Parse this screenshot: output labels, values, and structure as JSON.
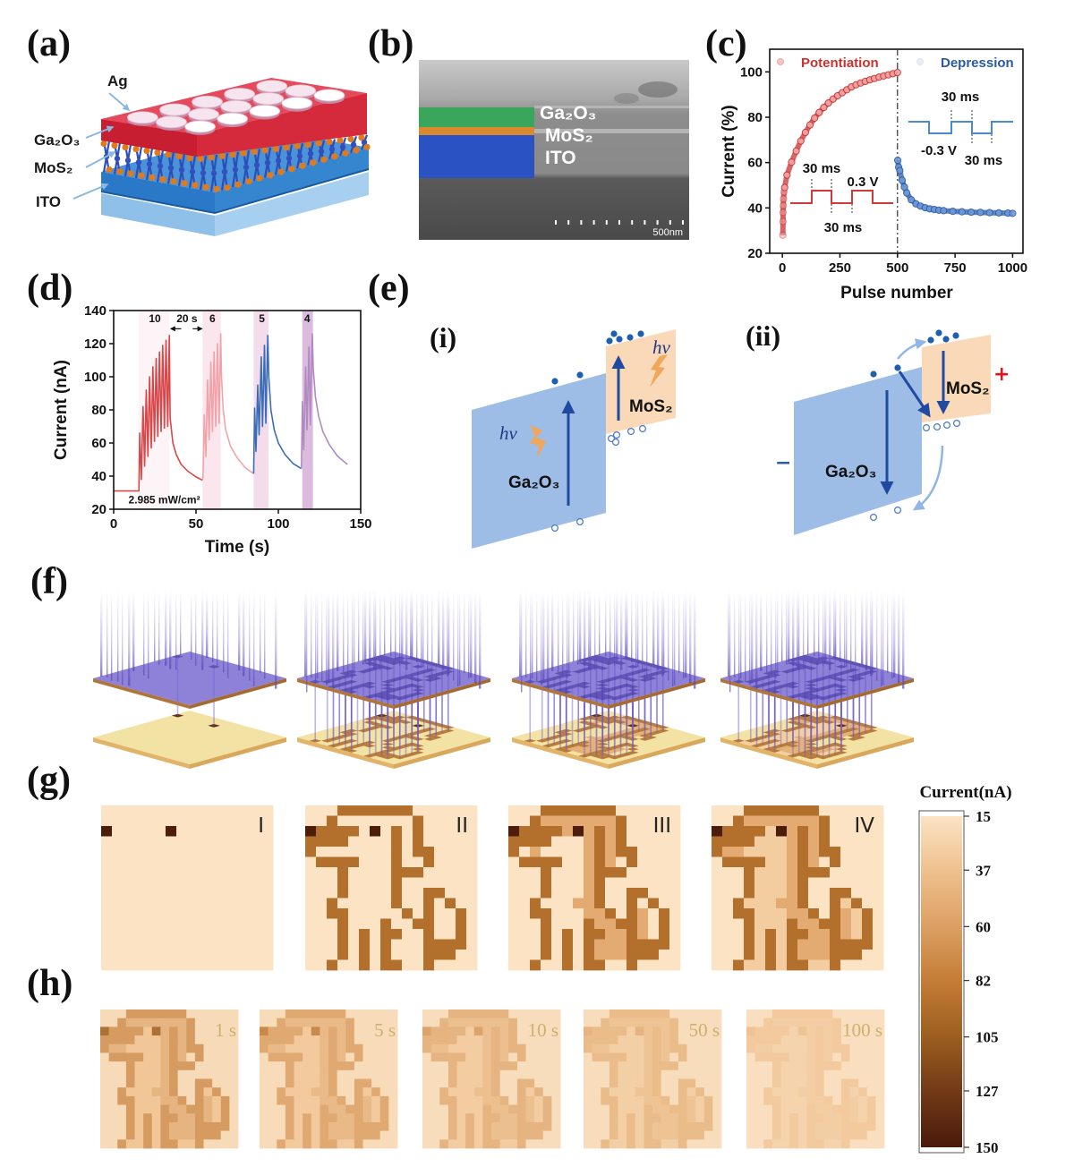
{
  "panel_labels": {
    "a": "(a)",
    "b": "(b)",
    "c": "(c)",
    "d": "(d)",
    "e": "(e)",
    "e_i": "(i)",
    "e_ii": "(ii)",
    "f": "(f)",
    "g": "(g)",
    "h": "(h)"
  },
  "device_schematic": {
    "ag": "Ag",
    "ga2o3": "Ga₂O₃",
    "mos2": "MoS₂",
    "ito": "ITO",
    "colors": {
      "ga2o3": "#d62b3c",
      "ito": "#3486d0",
      "substrate": "#9ac6ec",
      "mos2_atoms": "#e07a1a",
      "mos2_bonds": "#2a4fb8",
      "ag": "#f6e4ee"
    }
  },
  "sem_image": {
    "ga2o3": "Ga₂O₃",
    "mos2": "MoS₂",
    "ito": "ITO",
    "scale_bar": "500nm",
    "colors": {
      "ga2o3": "#3aa65c",
      "mos2": "#d98a2e",
      "ito": "#2a52c2"
    }
  },
  "band_diagram": {
    "i": {
      "photon_1": "hν",
      "photon_2": "hν",
      "ga2o3": "Ga₂O₃",
      "mos2": "MoS₂"
    },
    "ii": {
      "ga2o3": "Ga₂O₃",
      "mos2": "MoS₂",
      "plus": "+",
      "minus": "−"
    },
    "colors": {
      "ga2o3": "#9dbde6",
      "mos2": "#f9d9b8",
      "arrow": "#1f4aa0",
      "photon": "#f2a65a"
    }
  },
  "chart_data": [
    {
      "panel": "c",
      "type": "scatter",
      "title": "",
      "xlabel": "Pulse number",
      "ylabel": "Current (%)",
      "xlim": [
        -55,
        1045
      ],
      "ylim": [
        20,
        110
      ],
      "xticks": [
        0,
        250,
        500,
        750,
        1000
      ],
      "yticks": [
        20,
        40,
        60,
        80,
        100
      ],
      "divider_x": 500,
      "grid": false,
      "legend": {
        "position": "top",
        "entries": [
          "Potentiation",
          "Depression"
        ]
      },
      "series": [
        {
          "name": "Potentiation",
          "color": "#c83232",
          "marker_color": "#f2a6a6",
          "points": [
            [
              2,
              28
            ],
            [
              3,
              34
            ],
            [
              3,
              38
            ],
            [
              4,
              41
            ],
            [
              5,
              44
            ],
            [
              7,
              47
            ],
            [
              10,
              49
            ],
            [
              20,
              54.5
            ],
            [
              40,
              60.2
            ],
            [
              60,
              65.1
            ],
            [
              80,
              69.5
            ],
            [
              100,
              73.3
            ],
            [
              120,
              76.6
            ],
            [
              140,
              79.6
            ],
            [
              160,
              82.1
            ],
            [
              180,
              84.3
            ],
            [
              200,
              86.3
            ],
            [
              220,
              88.0
            ],
            [
              240,
              89.5
            ],
            [
              260,
              90.8
            ],
            [
              280,
              92.1
            ],
            [
              300,
              93.4
            ],
            [
              320,
              94.3
            ],
            [
              340,
              95.1
            ],
            [
              360,
              95.8
            ],
            [
              380,
              96.5
            ],
            [
              400,
              97.1
            ],
            [
              420,
              97.7
            ],
            [
              440,
              98.2
            ],
            [
              460,
              98.7
            ],
            [
              480,
              99.2
            ],
            [
              500,
              99.7
            ]
          ]
        },
        {
          "name": "Depression",
          "color": "#2a5aa8",
          "marker_color": "#6f9ad6",
          "points": [
            [
              501,
              61
            ],
            [
              505,
              58
            ],
            [
              510,
              56.5
            ],
            [
              520,
              52.2
            ],
            [
              530,
              49.2
            ],
            [
              540,
              46.6
            ],
            [
              560,
              43.6
            ],
            [
              580,
              41.8
            ],
            [
              600,
              40.8
            ],
            [
              620,
              40.1
            ],
            [
              640,
              39.6
            ],
            [
              660,
              39.3
            ],
            [
              680,
              39.0
            ],
            [
              700,
              38.8
            ],
            [
              740,
              38.5
            ],
            [
              780,
              38.3
            ],
            [
              820,
              38.1
            ],
            [
              860,
              38.0
            ],
            [
              900,
              37.9
            ],
            [
              940,
              37.8
            ],
            [
              980,
              37.7
            ],
            [
              1000,
              37.6
            ]
          ]
        }
      ],
      "insets": [
        {
          "name": "potentiation pulse",
          "width_label": "30 ms",
          "amplitude_label": "0.3 V",
          "interval_label": "30 ms",
          "color": "#d03a3a"
        },
        {
          "name": "depression pulse",
          "width_label": "30 ms",
          "amplitude_label": "-0.3 V",
          "interval_label": "30 ms",
          "color": "#4a8ad0"
        }
      ]
    },
    {
      "panel": "d",
      "type": "line",
      "title": "",
      "xlabel": "Time (s)",
      "ylabel": "Current (nA)",
      "xlim": [
        0,
        150
      ],
      "ylim": [
        20,
        140
      ],
      "xticks": [
        0,
        50,
        100,
        150
      ],
      "yticks": [
        20,
        40,
        60,
        80,
        100,
        120,
        140
      ],
      "grid": false,
      "series": [
        {
          "name": "10 pulses",
          "color": "#d8474a",
          "points": [
            [
              0,
              31
            ],
            [
              15,
              31
            ],
            [
              15.3,
              31
            ],
            [
              15.8,
              66
            ],
            [
              16.8,
              38
            ],
            [
              17.8,
              82
            ],
            [
              18.8,
              46
            ],
            [
              19.8,
              92
            ],
            [
              20.8,
              52
            ],
            [
              21.8,
              100
            ],
            [
              22.8,
              57
            ],
            [
              23.8,
              106
            ],
            [
              24.8,
              61
            ],
            [
              25.8,
              111
            ],
            [
              26.8,
              64
            ],
            [
              27.8,
              115
            ],
            [
              28.8,
              67
            ],
            [
              29.8,
              119
            ],
            [
              30.8,
              69
            ],
            [
              31.8,
              122
            ],
            [
              32.8,
              70
            ],
            [
              33.8,
              125
            ],
            [
              34.3,
              75
            ],
            [
              36,
              60
            ],
            [
              38,
              53
            ],
            [
              41,
              47
            ],
            [
              45,
              43
            ],
            [
              50,
              39.5
            ],
            [
              54,
              37.5
            ]
          ]
        },
        {
          "name": "6 pulses",
          "color": "#f0a4aa",
          "points": [
            [
              54,
              37.5
            ],
            [
              54.3,
              40
            ],
            [
              55,
              77
            ],
            [
              56,
              52
            ],
            [
              57,
              98
            ],
            [
              58,
              62
            ],
            [
              59,
              109
            ],
            [
              60,
              67
            ],
            [
              61,
              115
            ],
            [
              62,
              70
            ],
            [
              63,
              120
            ],
            [
              64,
              72
            ],
            [
              65,
              126
            ],
            [
              65.5,
              100
            ],
            [
              66.5,
              80
            ],
            [
              68,
              68
            ],
            [
              71,
              58
            ],
            [
              75,
              51
            ],
            [
              80,
              45
            ],
            [
              85,
              41.5
            ]
          ]
        },
        {
          "name": "5 pulses",
          "color": "#3a6db8",
          "points": [
            [
              85,
              41.5
            ],
            [
              85.6,
              81
            ],
            [
              86.4,
              55
            ],
            [
              87.5,
              95
            ],
            [
              88.3,
              65
            ],
            [
              89.6,
              112
            ],
            [
              90.4,
              70
            ],
            [
              91.6,
              119
            ],
            [
              92.4,
              72
            ],
            [
              93.6,
              125
            ],
            [
              94.2,
              100
            ],
            [
              95.5,
              80
            ],
            [
              97.5,
              68
            ],
            [
              100,
              60
            ],
            [
              104,
              53
            ],
            [
              109,
              47.5
            ],
            [
              114,
              44.5
            ]
          ]
        },
        {
          "name": "4 pulses",
          "color": "#b08ac0",
          "points": [
            [
              114,
              44.5
            ],
            [
              114.6,
              85
            ],
            [
              115.4,
              56
            ],
            [
              116.6,
              106
            ],
            [
              117.4,
              68
            ],
            [
              118.6,
              118
            ],
            [
              119.4,
              71
            ],
            [
              120.6,
              126
            ],
            [
              121.2,
              105
            ],
            [
              122.5,
              88
            ],
            [
              124.5,
              76
            ],
            [
              127,
              67
            ],
            [
              131,
              59
            ],
            [
              136,
              52
            ],
            [
              142,
              47
            ]
          ]
        }
      ],
      "shaded_regions": [
        {
          "x": [
            15,
            34
          ],
          "color": "#fcf4f6"
        },
        {
          "x": [
            54,
            65
          ],
          "color": "#fbe6ed"
        },
        {
          "x": [
            85,
            94
          ],
          "color": "#f5dcea"
        },
        {
          "x": [
            114.5,
            121
          ],
          "color": "#dbbcdf"
        }
      ],
      "annotations": [
        {
          "text": "10",
          "x": 25,
          "y": 133
        },
        {
          "text": "20 s",
          "x": 44.5,
          "y": 133
        },
        {
          "text": "6",
          "x": 60,
          "y": 133
        },
        {
          "text": "5",
          "x": 90,
          "y": 133
        },
        {
          "text": "4",
          "x": 117.5,
          "y": 133
        },
        {
          "text": "2.985 mW/cm²",
          "x": 9,
          "y": 23.5
        }
      ],
      "interval_arrows": {
        "from": 34,
        "to": 54,
        "y": 129
      }
    },
    {
      "panel": "g",
      "type": "heatmap",
      "grid": [
        16,
        16
      ],
      "colorbar": {
        "title": "Current(nA)",
        "ticks": [
          15,
          37,
          60,
          82,
          105,
          127,
          150
        ],
        "colors": [
          "#fbe3c4",
          "#efc18e",
          "#dc9f63",
          "#c47d36",
          "#9c5e1f",
          "#723a17",
          "#4a1a0b"
        ]
      },
      "images": [
        {
          "label": "I",
          "levels": {
            ".": 15,
            "x": 148
          },
          "rows": [
            "................",
            "................",
            "x.....x.........",
            "................",
            "................",
            "................",
            "................",
            "................",
            "................",
            "................",
            "................",
            "................",
            "................",
            "................",
            "................",
            "................"
          ]
        },
        {
          "label": "II",
          "levels": {
            ".": 15,
            "o": 92,
            "x": 148
          },
          "rows": [
            "...ooooooo......",
            "..o.......o.....",
            "xoooo.x.o.o.....",
            "oooo....o.o.....",
            "o.......o.oo....",
            ".oooo...o..o....",
            "...o....ooo.....",
            "...o....o.......",
            "...o....o..oo...",
            "..o.....o..o.o..",
            "..oo.....o.o..o.",
            "...o...o..oo..o.",
            "...o.o.oo..o..o.",
            "...o.o.o...oooo.",
            "...o.o.o...ooo..",
            "..o..o.oo..o...."
          ]
        },
        {
          "label": "III",
          "levels": {
            ".": 15,
            "o": 92,
            "x": 148,
            "f": 52
          },
          "rows": [
            "...ooooooo......",
            "..offfffffo.....",
            "xoooofxfofo.....",
            "oooo...fofo.....",
            "o.f....fofoo....",
            ".oooo..fof.o....",
            "...o...fooo.....",
            "...o...fo.......",
            "...o...fo..oo...",
            "..o...ffo..o.o..",
            "..oo...ffo.of.o.",
            "...o...offoof.o.",
            "...o.o.ooffof.o.",
            "...o.o.offfoooo.",
            "...o.o.offfooo..",
            "..o..o.oo..o...."
          ]
        },
        {
          "label": "IV",
          "levels": {
            ".": 15,
            "o": 92,
            "x": 148,
            "f": 52,
            "l": 30
          },
          "rows": [
            "...ooooooo......",
            "..offfffffo.....",
            "xoooolxfofo.....",
            "oooolllfofo.....",
            "offllllfofoo....",
            ".oooollfof.o....",
            "...olllfooo.....",
            "...olllfo.......",
            "...olllfo..oo...",
            "..olllffo..olo..",
            "..oolllffo.oflo.",
            "...ollloffooflo.",
            "...ololooffoflo.",
            "...ololofffoooo.",
            "...ololofffooo..",
            "..olloloollo...."
          ]
        }
      ]
    },
    {
      "panel": "h",
      "type": "heatmap",
      "grid": [
        16,
        16
      ],
      "pattern_rows": [
        "...ooooooo......",
        "..offfffffo.....",
        "xoooolxfofo.....",
        "oooolllfofo.....",
        "offllllfofoo....",
        ".oooollfof.o....",
        "...olllfooo.....",
        "...olllfo.......",
        "...olllfo..oo...",
        "..olllffo..olo..",
        "..oolllffo.oflo.",
        "...ollloffooflo.",
        "...ololooffoflo.",
        "...ololofffoooo.",
        "...ololofffooo..",
        "..olloloollo...."
      ],
      "images": [
        {
          "label": "1 s",
          "levels": {
            ".": 22,
            "o": 68,
            "x": 100,
            "f": 50,
            "l": 36
          }
        },
        {
          "label": "5 s",
          "levels": {
            ".": 21,
            "o": 58,
            "x": 80,
            "f": 46,
            "l": 34
          }
        },
        {
          "label": "10 s",
          "levels": {
            ".": 20,
            "o": 50,
            "x": 62,
            "f": 42,
            "l": 32
          }
        },
        {
          "label": "50 s",
          "levels": {
            ".": 20,
            "o": 44,
            "x": 50,
            "f": 38,
            "l": 30
          }
        },
        {
          "label": "100 s",
          "levels": {
            ".": 19,
            "o": 34,
            "x": 38,
            "f": 31,
            "l": 27
          }
        }
      ]
    }
  ]
}
